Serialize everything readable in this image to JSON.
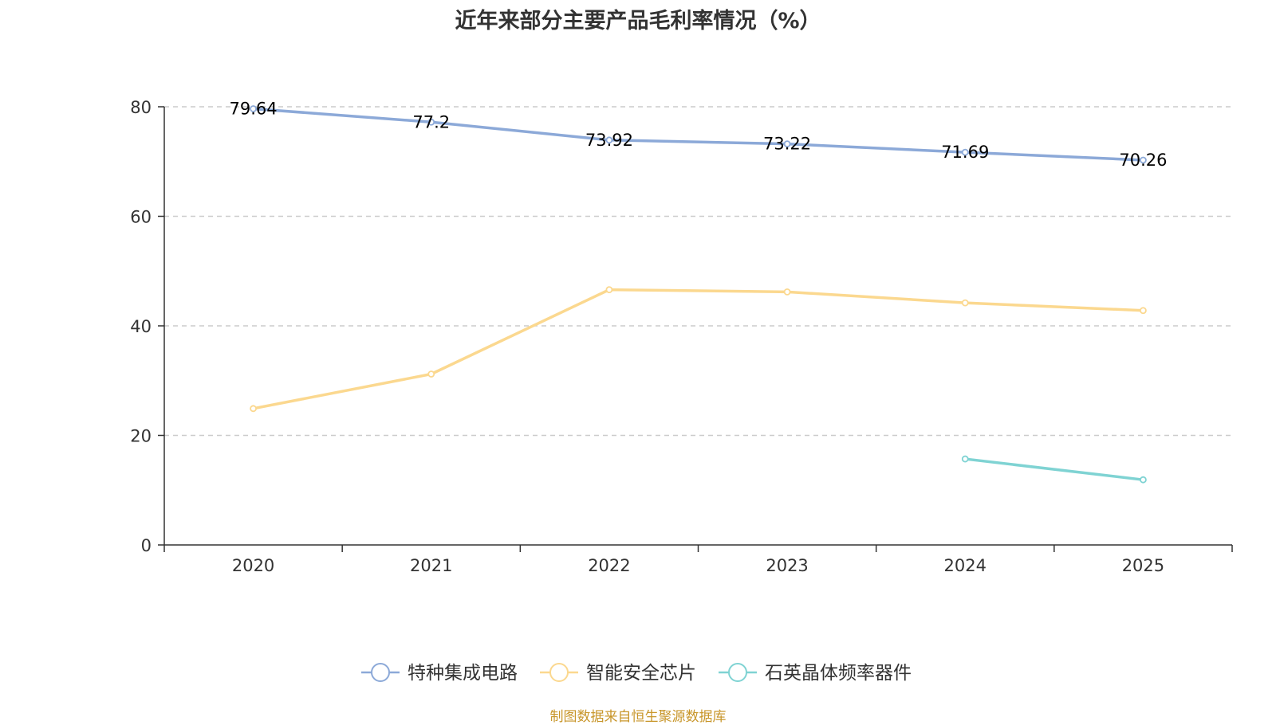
{
  "chart_data": {
    "type": "line",
    "title": "近年来部分主要产品毛利率情况（%）",
    "categories": [
      "2020",
      "2021",
      "2022",
      "2023",
      "2024",
      "2025"
    ],
    "ylim": [
      0,
      80
    ],
    "yticks": [
      0,
      20,
      40,
      60,
      80
    ],
    "grid": true,
    "legend_position": "bottom",
    "series": [
      {
        "name": "特种集成电路",
        "color": "#8ca9d8",
        "values": [
          79.64,
          77.2,
          73.92,
          73.22,
          71.69,
          70.26
        ],
        "labels": [
          "79.64",
          "77.2",
          "73.92",
          "73.22",
          "71.69",
          "70.26"
        ]
      },
      {
        "name": "智能安全芯片",
        "color": "#fbd88f",
        "values": [
          24.9,
          31.2,
          46.6,
          46.2,
          44.2,
          42.8
        ],
        "labels": null
      },
      {
        "name": "石英晶体频率器件",
        "color": "#7fd3d3",
        "values": [
          null,
          null,
          null,
          null,
          15.7,
          11.9
        ],
        "labels": null
      }
    ]
  },
  "source_note": "制图数据来自恒生聚源数据库"
}
